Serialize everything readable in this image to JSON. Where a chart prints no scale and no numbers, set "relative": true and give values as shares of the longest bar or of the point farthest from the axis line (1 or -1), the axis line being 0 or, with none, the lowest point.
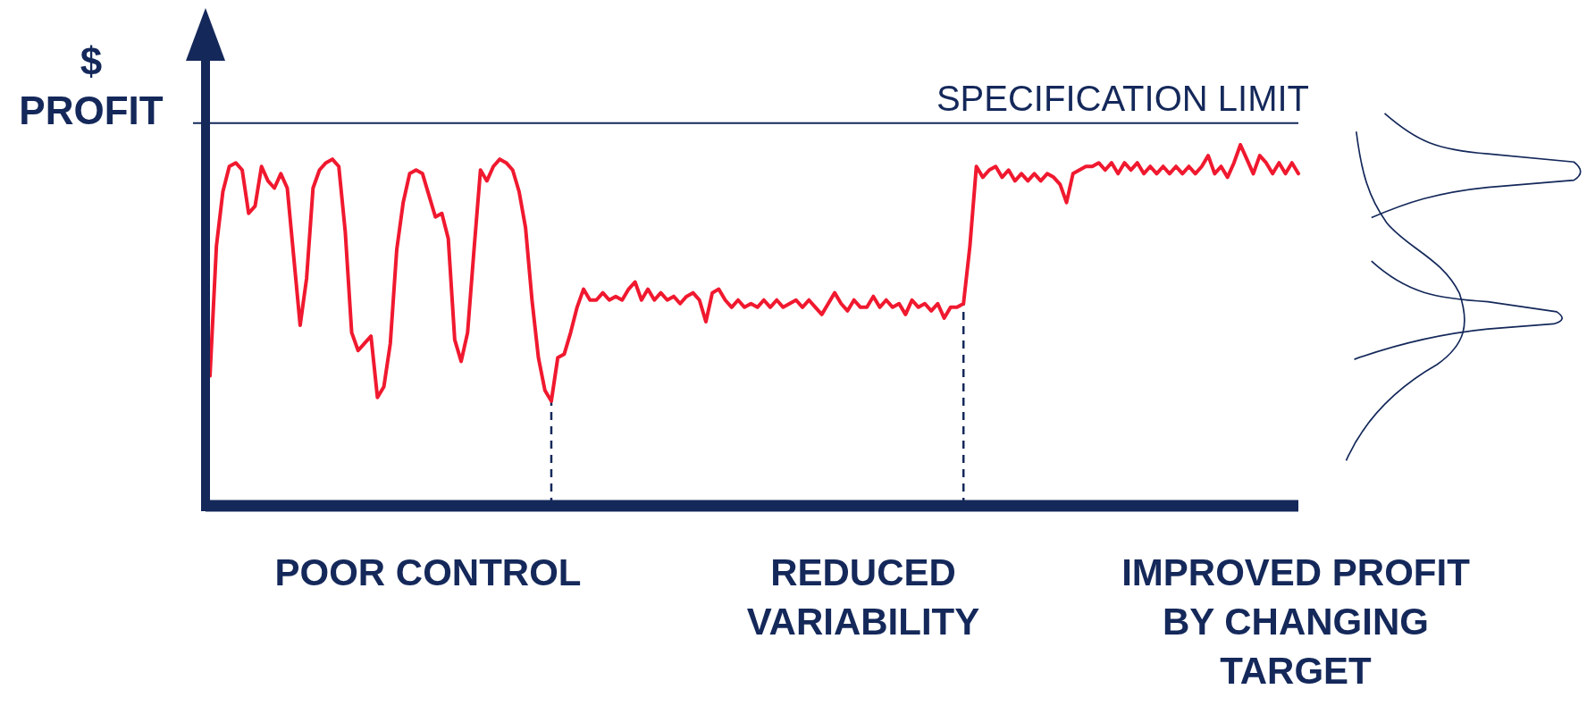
{
  "chart_data": {
    "type": "line",
    "relative": true,
    "ylabel": "$\nPROFIT",
    "line_style": "solid",
    "categories": [
      null,
      null,
      null,
      null,
      null,
      null,
      null,
      null,
      null,
      null,
      null,
      null,
      null,
      null,
      null,
      null,
      null,
      null,
      null,
      null,
      null,
      null,
      null,
      null,
      null,
      null,
      null,
      null,
      null,
      null,
      null,
      null,
      null,
      null,
      null,
      null,
      null,
      null,
      null,
      null,
      null,
      null,
      null,
      null,
      null,
      null,
      null,
      null,
      null,
      null,
      null,
      null,
      null,
      null,
      null,
      null,
      null,
      null,
      null,
      null,
      null,
      null,
      null,
      null,
      null,
      null,
      null,
      null,
      null,
      null,
      null,
      null,
      null,
      null,
      null,
      null,
      null,
      null,
      null,
      null,
      null,
      null,
      null,
      null,
      null,
      null,
      null,
      null,
      null,
      null,
      null,
      null,
      null,
      null,
      null,
      null,
      null,
      null,
      null,
      null,
      null,
      null,
      null,
      null,
      null,
      null,
      null,
      null,
      null,
      null,
      null,
      null,
      null,
      null,
      null,
      null,
      null,
      null,
      null,
      null,
      null,
      null,
      null,
      null,
      null,
      null,
      null,
      null,
      null,
      null,
      null,
      null,
      null,
      null,
      null,
      null,
      null,
      null,
      null,
      null,
      null,
      null,
      null,
      null,
      null,
      null,
      null,
      null,
      null,
      null,
      null,
      null,
      null,
      null,
      null,
      null,
      null,
      null,
      null,
      null,
      null,
      null,
      null,
      null,
      null,
      null,
      null,
      null,
      null,
      null
    ],
    "ref_lines": [
      {
        "axis": "y",
        "value": 1.06,
        "label": "SPECIFICATION LIMIT",
        "color": "#14285a",
        "line_style": "solid"
      }
    ],
    "annotations": [
      "POOR CONTROL",
      "REDUCED\nVARIABILITY",
      "IMPROVED PROFIT\nBY CHANGING\nTARGET"
    ],
    "series": [
      {
        "color": "#f0192f",
        "values": [
          0.36,
          0.72,
          0.87,
          0.94,
          0.95,
          0.93,
          0.81,
          0.83,
          0.94,
          0.9,
          0.88,
          0.92,
          0.88,
          0.69,
          0.5,
          0.63,
          0.88,
          0.93,
          0.95,
          0.96,
          0.94,
          0.76,
          0.48,
          0.43,
          0.45,
          0.47,
          0.3,
          0.33,
          0.45,
          0.71,
          0.84,
          0.92,
          0.93,
          0.92,
          0.86,
          0.8,
          0.81,
          0.74,
          0.46,
          0.4,
          0.48,
          0.71,
          0.93,
          0.9,
          0.94,
          0.96,
          0.95,
          0.93,
          0.87,
          0.77,
          0.57,
          0.41,
          0.32,
          0.29,
          0.41,
          0.42,
          0.48,
          0.55,
          0.6,
          0.57,
          0.57,
          0.59,
          0.57,
          0.58,
          0.57,
          0.6,
          0.62,
          0.57,
          0.6,
          0.57,
          0.59,
          0.57,
          0.58,
          0.56,
          0.58,
          0.59,
          0.57,
          0.51,
          0.59,
          0.6,
          0.57,
          0.55,
          0.57,
          0.55,
          0.56,
          0.55,
          0.57,
          0.55,
          0.57,
          0.55,
          0.56,
          0.57,
          0.55,
          0.57,
          0.55,
          0.53,
          0.56,
          0.59,
          0.56,
          0.54,
          0.57,
          0.55,
          0.55,
          0.58,
          0.55,
          0.57,
          0.55,
          0.56,
          0.53,
          0.57,
          0.55,
          0.56,
          0.54,
          0.56,
          0.52,
          0.55,
          0.55,
          0.56,
          0.72,
          0.94,
          0.91,
          0.93,
          0.94,
          0.91,
          0.93,
          0.9,
          0.92,
          0.9,
          0.92,
          0.9,
          0.92,
          0.91,
          0.89,
          0.84,
          0.92,
          0.93,
          0.94,
          0.94,
          0.95,
          0.93,
          0.95,
          0.92,
          0.95,
          0.93,
          0.95,
          0.92,
          0.94,
          0.92,
          0.94,
          0.92,
          0.94,
          0.92,
          0.94,
          0.92,
          0.94,
          0.97,
          0.92,
          0.94,
          0.91,
          0.95,
          1.0,
          0.96,
          0.92,
          0.97,
          0.95,
          0.92,
          0.95,
          0.92,
          0.95,
          0.92
        ]
      }
    ]
  }
}
